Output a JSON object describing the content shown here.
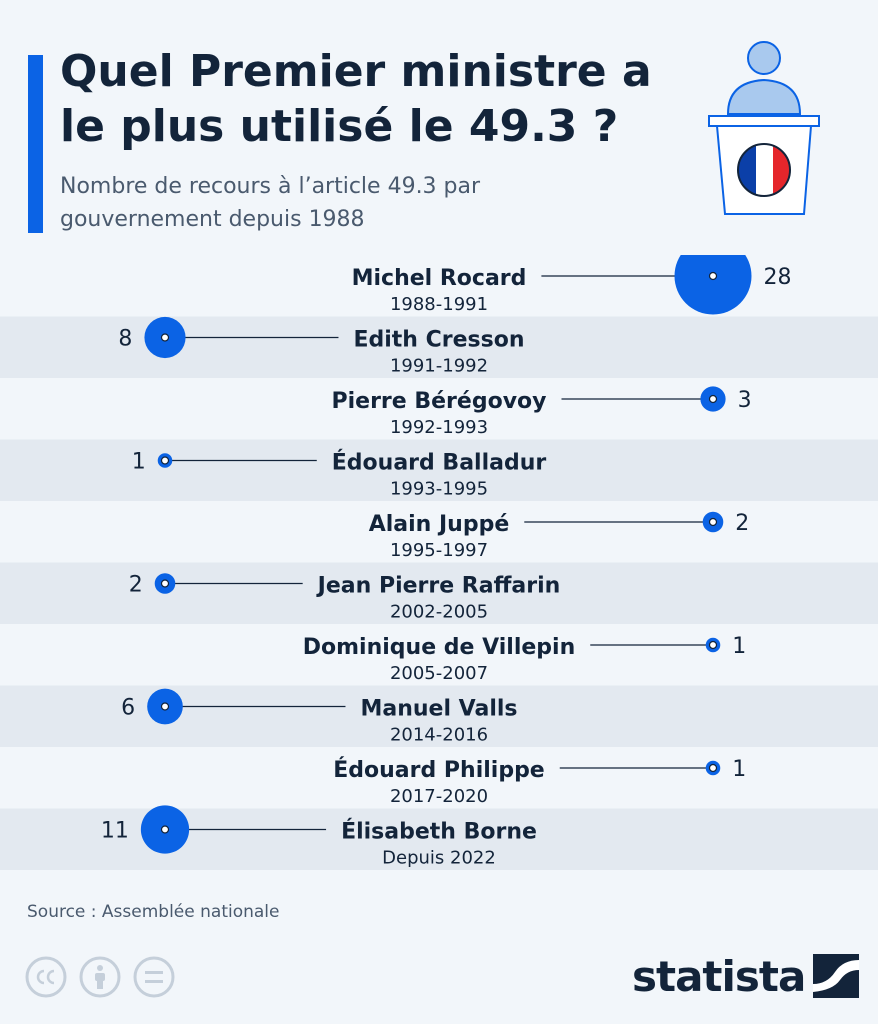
{
  "header": {
    "title": "Quel Premier ministre a le plus utilisé le 49.3 ?",
    "subtitle": "Nombre de recours à l’article 49.3 par gouvernement depuis 1988"
  },
  "footer": {
    "source": "Source : Assemblée nationale",
    "brand": "statista"
  },
  "colors": {
    "accent": "#0b63e5",
    "text": "#13243a",
    "stripe": "#e3e9f0",
    "background": "#f2f6fa"
  },
  "icons": [
    "podium-icon",
    "french-flag-icon",
    "cc-icon",
    "attribution-icon",
    "no-derivatives-icon",
    "statista-logo-icon"
  ],
  "chart_data": {
    "type": "scatter",
    "title": "Quel Premier ministre a le plus utilisé le 49.3 ?",
    "subtitle": "Nombre de recours à l’article 49.3 par gouvernement depuis 1988",
    "categories": [
      "Michel Rocard",
      "Edith Cresson",
      "Pierre Bérégovoy",
      "Édouard Balladur",
      "Alain Juppé",
      "Jean Pierre Raffarin",
      "Dominique de Villepin",
      "Manuel Valls",
      "Édouard Philippe",
      "Élisabeth Borne"
    ],
    "periods": [
      "1988-1991",
      "1991-1992",
      "1992-1993",
      "1993-1995",
      "1995-1997",
      "2002-2005",
      "2005-2007",
      "2014-2016",
      "2017-2020",
      "Depuis 2022"
    ],
    "values": [
      28,
      8,
      3,
      1,
      2,
      2,
      1,
      6,
      1,
      11
    ],
    "sides": [
      "right",
      "left",
      "right",
      "left",
      "right",
      "left",
      "right",
      "left",
      "right",
      "left"
    ]
  }
}
